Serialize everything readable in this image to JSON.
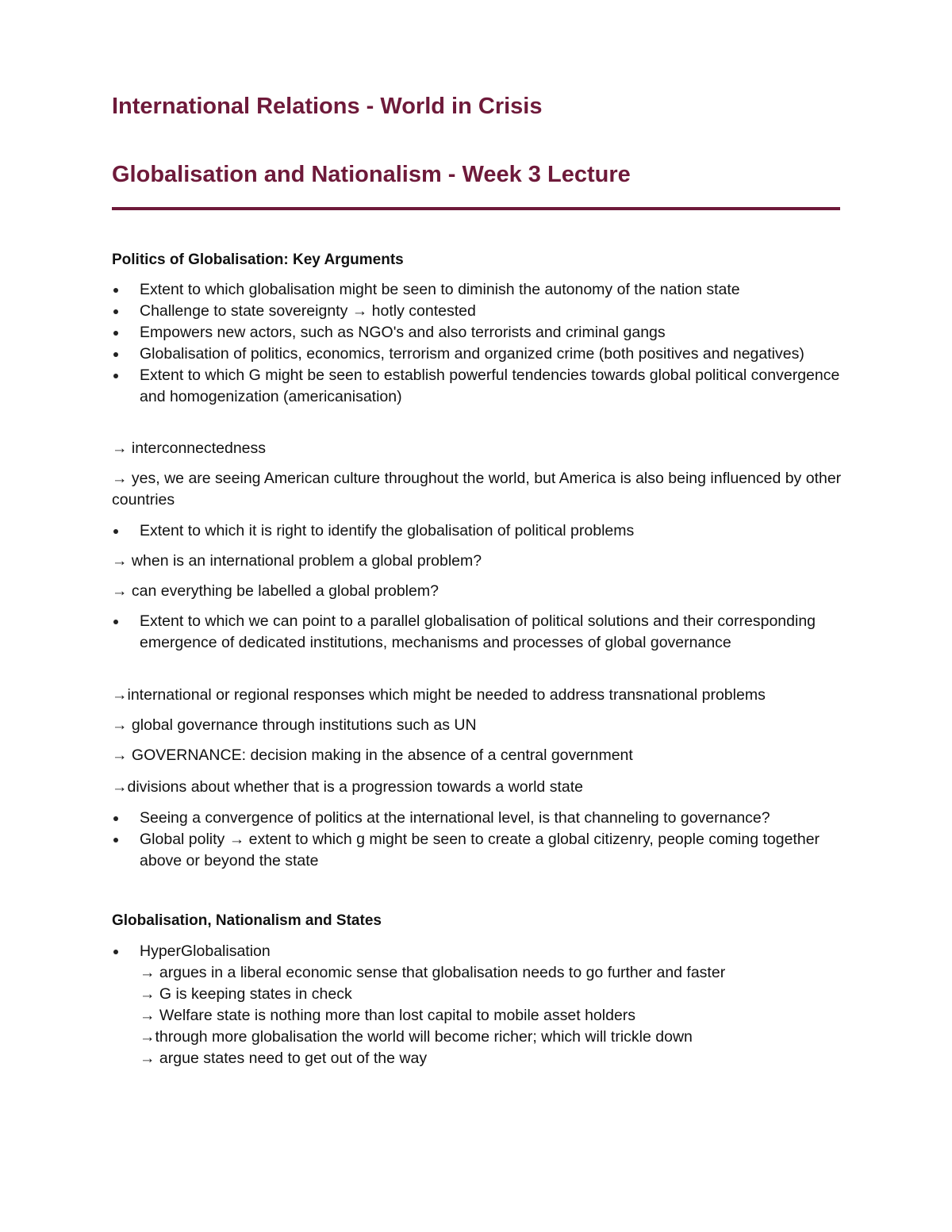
{
  "title": "International Relations - World in Crisis",
  "subtitle": "Globalisation and Nationalism - Week 3 Lecture",
  "accent_color": "#6e1a3a",
  "section1": {
    "heading": "Politics of Globalisation: Key Arguments",
    "bullets_a": [
      "Extent to which globalisation might be seen to diminish the autonomy of the nation state",
      "Challenge to state sovereignty → hotly contested",
      "Empowers new actors, such as NGO's and also terrorists and criminal gangs",
      "Globalisation of politics, economics, terrorism and organized crime (both positives and negatives)",
      "Extent to which G might be seen to establish powerful tendencies towards global political convergence and homogenization (americanisation)"
    ],
    "arrow1": "→ interconnectedness",
    "arrow2": "→ yes, we are seeing American culture throughout the world, but America is also being influenced by other countries",
    "bullet_b": "Extent to which it is right to identify the globalisation of political problems",
    "arrow3": "→ when is an international problem a global problem?",
    "arrow4": "→ can everything be labelled a global problem?",
    "bullet_c": "Extent to which we can point to a parallel globalisation of political solutions and their corresponding emergence of dedicated institutions, mechanisms and processes of global governance",
    "arrow5": "→international or regional responses which might be needed to address transnational problems",
    "arrow6": "→ global governance through institutions such as UN",
    "arrow7": "→ GOVERNANCE: decision making in the absence of a central government",
    "arrow8": "→divisions about whether that is a progression towards a world state",
    "bullets_d": [
      "Seeing a convergence of politics at the international level, is that channeling to governance?",
      "Global polity → extent to which g might be seen to create a global citizenry, people coming together above or beyond the state"
    ]
  },
  "section2": {
    "heading": "Globalisation, Nationalism and States",
    "bullet": "HyperGlobalisation",
    "subs": [
      "→ argues in a liberal economic sense that globalisation needs to go further and faster",
      "→ G is keeping states in check",
      "→ Welfare state is nothing more than lost capital to mobile asset holders",
      "→through more globalisation the world will become richer; which will trickle down",
      "→ argue states need to get out of the way"
    ]
  }
}
